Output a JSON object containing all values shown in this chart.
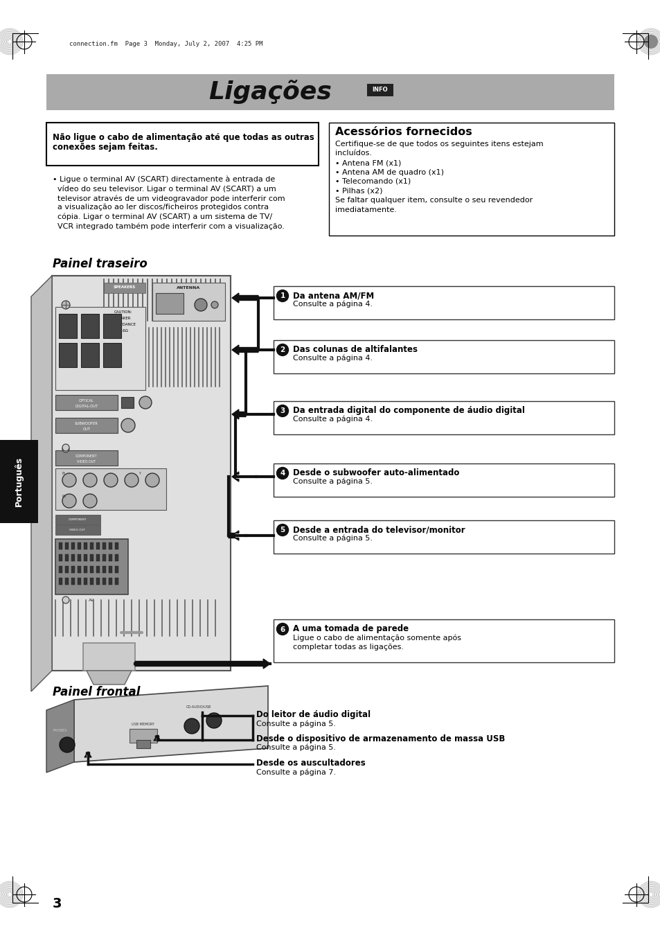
{
  "title": "Ligações",
  "title_info": "INFO",
  "bg_title": "#aaaaaa",
  "page_number": "3",
  "header_text": "connection.fm  Page 3  Monday, July 2, 2007  4:25 PM",
  "warning_box_text_line1": "Não ligue o cabo de alimentação até que todas as outras",
  "warning_box_text_line2": "conexões sejam feitas.",
  "accessories_title": "Acessórios fornecidos",
  "accessories_body": [
    "Certifique-se de que todos os seguintes itens estejam",
    "incluídos.",
    "• Antena FM (x1)",
    "• Antena AM de quadro (x1)",
    "• Telecomando (x1)",
    "• Pilhas (x2)",
    "Se faltar qualquer item, consulte o seu revendedor",
    "imediatamente."
  ],
  "left_body_text": [
    "• Ligue o terminal AV (SCART) directamente à entrada de",
    "  vídeo do seu televisor. Ligar o terminal AV (SCART) a um",
    "  televisor através de um videogravador pode interferir com",
    "  a visualização ao ler discos/ficheiros protegidos contra",
    "  cópia. Ligar o terminal AV (SCART) a um sistema de TV/",
    "  VCR integrado também pode interferir com a visualização."
  ],
  "painel_traseiro_label": "Painel traseiro",
  "painel_frontal_label": "Painel frontal",
  "connection_items": [
    {
      "num": "1",
      "bold": "Da antena AM/FM",
      "normal": "Consulte a página 4."
    },
    {
      "num": "2",
      "bold": "Das colunas de altifalantes",
      "normal": "Consulte a página 4."
    },
    {
      "num": "3",
      "bold": "Da entrada digital do componente de áudio digital",
      "normal": "Consulte a página 4."
    },
    {
      "num": "4",
      "bold": "Desde o subwoofer auto-alimentado",
      "normal": "Consulte a página 5."
    },
    {
      "num": "5",
      "bold": "Desde a entrada do televisor/monitor",
      "normal": "Consulte a página 5."
    },
    {
      "num": "6",
      "bold": "A uma tomada de parede",
      "normal": "Ligue o cabo de alimentação somente após\ncompletar todas as ligações."
    }
  ],
  "frontal_items": [
    {
      "bold": "Do leitor de áudio digital",
      "normal": "Consulte a página 5."
    },
    {
      "bold": "Desde o dispositivo de armazenamento de massa USB",
      "normal": "Consulte a página 5."
    },
    {
      "bold": "Desde os auscultadores",
      "normal": "Consulte a página 7."
    }
  ],
  "portugues_label": "Português"
}
